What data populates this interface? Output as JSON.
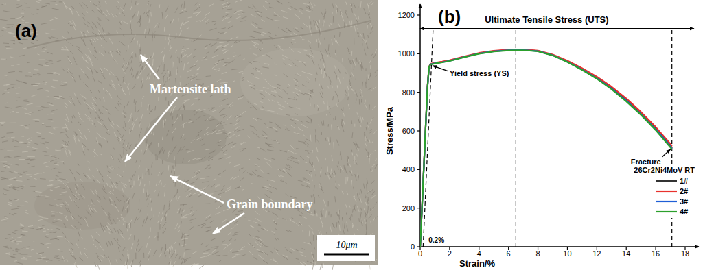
{
  "micrograph": {
    "panel_label": "(a)",
    "labels": [
      "Martensite lath",
      "Grain boundary"
    ],
    "scale_bar": "10μm"
  },
  "chart_data": {
    "type": "line",
    "panel_label": "(b)",
    "x_label": "Strain/%",
    "y_label": "Stress/MPa",
    "xlim": [
      0,
      18
    ],
    "ylim": [
      0,
      1200
    ],
    "xticks": [
      0,
      2,
      4,
      6,
      8,
      10,
      12,
      14,
      16,
      18
    ],
    "yticks": [
      0,
      200,
      400,
      600,
      800,
      1000,
      1200
    ],
    "grid": false,
    "legend": "lower right",
    "legend_title": "26Cr2Ni4MoV RT",
    "x": [
      0,
      0.1,
      0.2,
      0.3,
      0.4,
      0.5,
      0.6,
      0.7,
      1,
      1.5,
      2,
      3,
      4,
      5,
      6,
      6.5,
      7,
      8,
      9,
      10,
      11,
      12,
      13,
      14,
      15,
      16,
      17,
      17.1
    ],
    "series": [
      {
        "name": "1#",
        "color": "#333333",
        "values": [
          0,
          160,
          330,
          500,
          670,
          830,
          930,
          946,
          951,
          957,
          964,
          984,
          1002,
          1013,
          1019,
          1020,
          1020,
          1014,
          993,
          960,
          920,
          875,
          822,
          760,
          690,
          612,
          525,
          512
        ]
      },
      {
        "name": "2#",
        "color": "#e8322d",
        "values": [
          0,
          162,
          333,
          503,
          673,
          833,
          932,
          948,
          953,
          959,
          966,
          986,
          1004,
          1015,
          1021,
          1022,
          1022,
          1016,
          996,
          964,
          925,
          881,
          829,
          768,
          698,
          620,
          533,
          520
        ]
      },
      {
        "name": "3#",
        "color": "#1f5fd6",
        "values": [
          0,
          158,
          328,
          498,
          668,
          828,
          929,
          945,
          950,
          956,
          963,
          983,
          1001,
          1012,
          1018,
          1019,
          1019,
          1013,
          992,
          958,
          918,
          872,
          819,
          757,
          686,
          608,
          520,
          508
        ]
      },
      {
        "name": "4#",
        "color": "#2ca02c",
        "values": [
          0,
          159,
          329,
          499,
          669,
          829,
          929,
          944,
          949,
          955,
          962,
          982,
          1000,
          1011,
          1017,
          1018,
          1018,
          1012,
          991,
          957,
          916,
          870,
          816,
          753,
          683,
          604,
          515,
          503
        ]
      }
    ],
    "annotations": [
      {
        "text": "Ultimate Tensile Stress (UTS)",
        "x": 6.5,
        "arrow_y": 1130,
        "arrow_x": [
          0,
          18.6
        ]
      },
      {
        "text": "Yield stress (YS)",
        "x": 0.7,
        "y": 945
      },
      {
        "text": "Fracture",
        "x": 17.1,
        "y": 512
      },
      {
        "text": "0.2%",
        "x": 0.2,
        "y": 0
      }
    ]
  }
}
